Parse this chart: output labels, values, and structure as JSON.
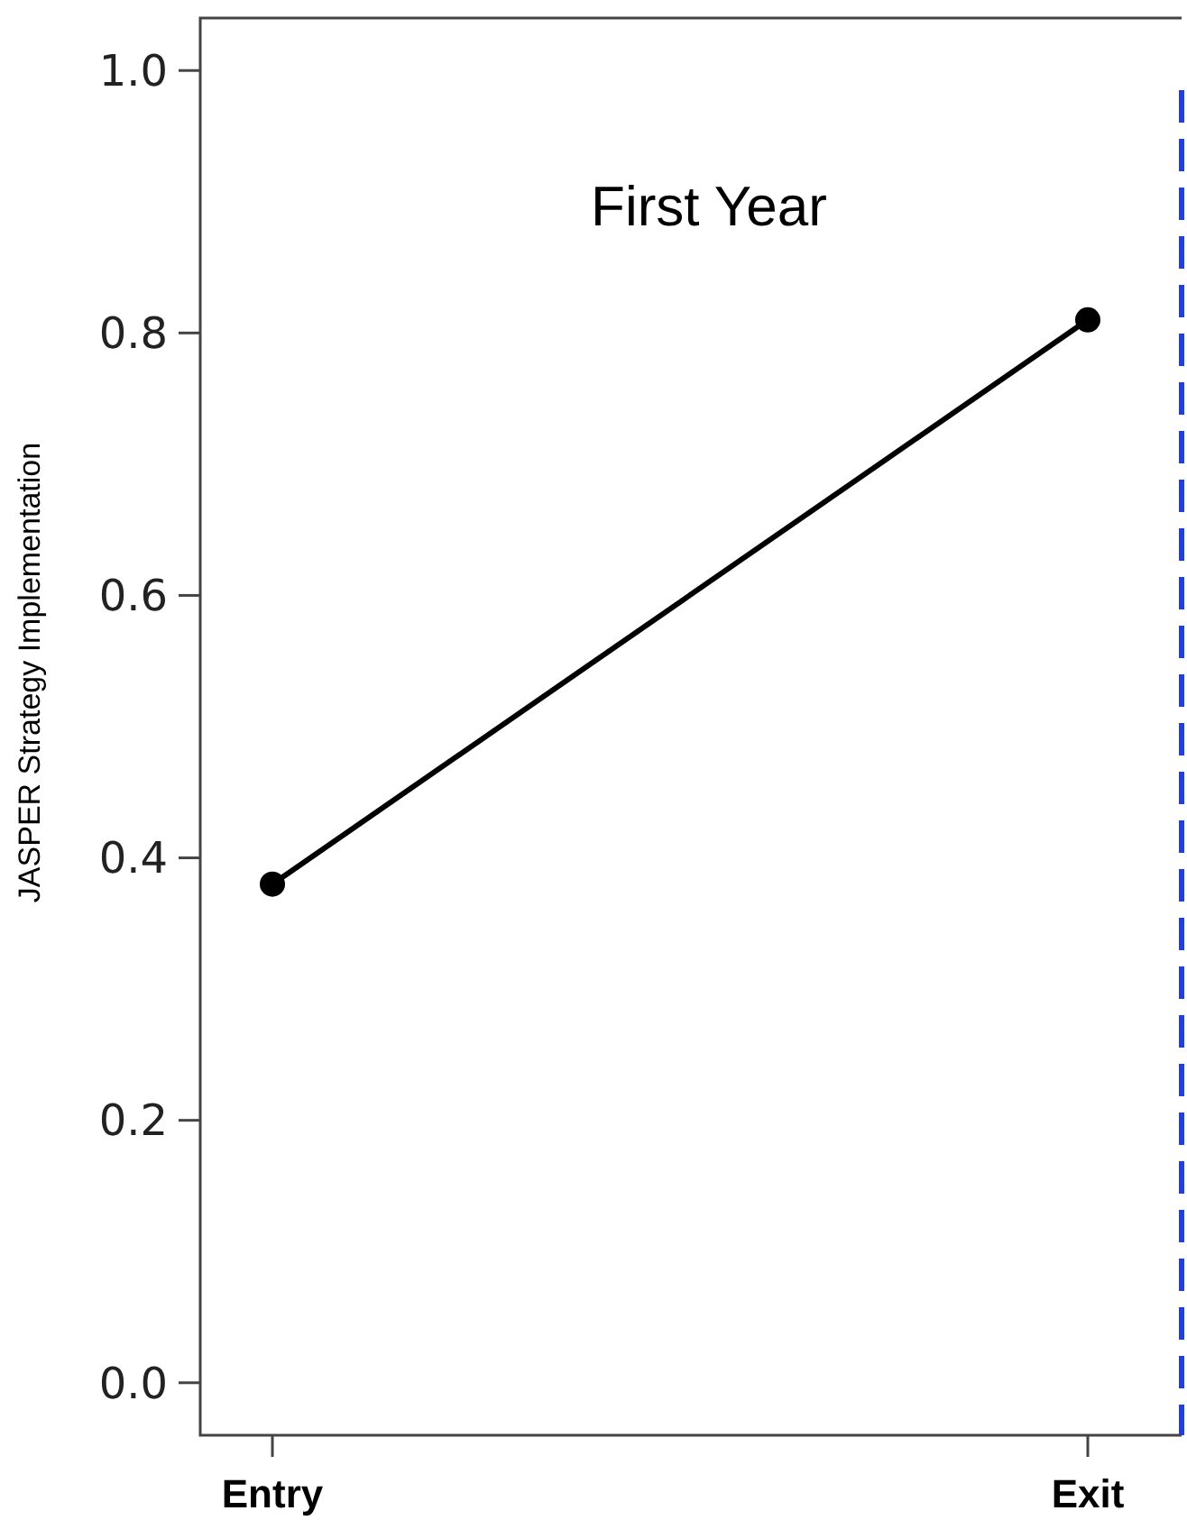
{
  "chart_data": {
    "type": "line",
    "title": "First Year",
    "ylabel": "JASPER Strategy Implementation",
    "categories": [
      "Entry",
      "Exit"
    ],
    "series": [
      {
        "color": "#000000",
        "values": [
          0.38,
          0.81
        ]
      }
    ],
    "ylim": [
      -0.04,
      1.04
    ],
    "yticks": [
      {
        "value": 0,
        "label": "0.0"
      },
      0.2,
      0.4,
      0.6,
      0.8,
      {
        "value": 1,
        "label": "1.0"
      }
    ],
    "marker": "circle",
    "line_style": "solid"
  }
}
